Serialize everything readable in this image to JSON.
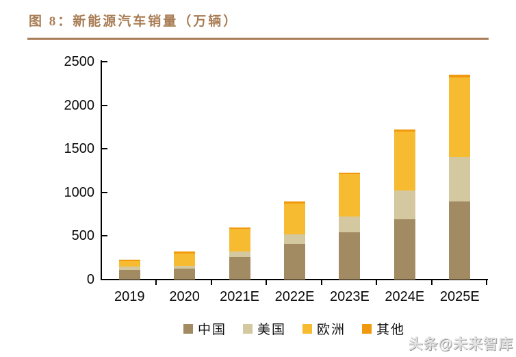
{
  "header": {
    "title": "图 8：新能源汽车销量（万辆）"
  },
  "watermark": {
    "text": "头条@未来智库"
  },
  "colors": {
    "accent": "#A87C54",
    "axis": "#000000",
    "china": "#A28A62",
    "us": "#D4C8A0",
    "europe": "#F7BB32",
    "other": "#F0990D",
    "watermark": "#E2E2E2"
  },
  "chart_data": {
    "type": "bar",
    "stacked": true,
    "title": "新能源汽车销量（万辆）",
    "unit": "万辆",
    "categories": [
      "2019",
      "2020",
      "2021E",
      "2022E",
      "2023E",
      "2024E",
      "2025E"
    ],
    "series": [
      {
        "name": "中国",
        "color": "#A28A62",
        "values": [
          110,
          130,
          260,
          410,
          540,
          690,
          900
        ]
      },
      {
        "name": "美国",
        "color": "#D4C8A0",
        "values": [
          40,
          30,
          65,
          110,
          180,
          330,
          510
        ]
      },
      {
        "name": "欧洲",
        "color": "#F7BB32",
        "values": [
          60,
          140,
          255,
          350,
          490,
          680,
          910
        ]
      },
      {
        "name": "其他",
        "color": "#F0990D",
        "values": [
          20,
          20,
          20,
          30,
          20,
          20,
          30
        ]
      }
    ],
    "totals": [
      230,
      320,
      600,
      900,
      1230,
      1720,
      2350
    ],
    "yticks": [
      0,
      500,
      1000,
      1500,
      2000,
      2500
    ],
    "ylim": [
      0,
      2500
    ],
    "grid": false,
    "legend_position": "bottom"
  }
}
